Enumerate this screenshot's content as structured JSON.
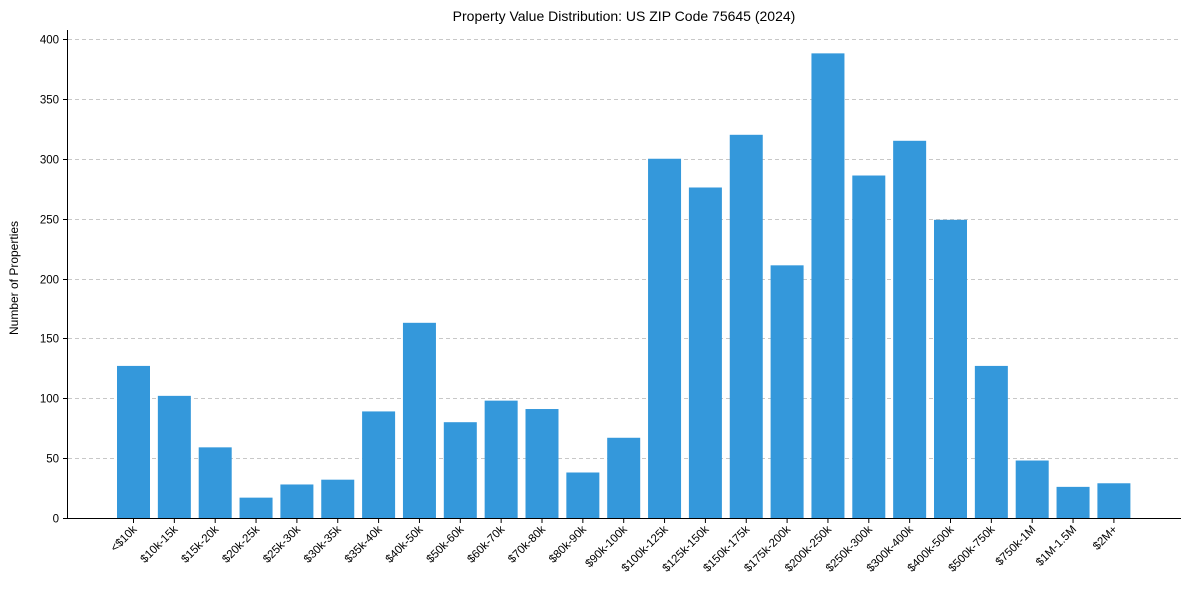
{
  "chart_data": {
    "type": "bar",
    "title": "Property Value Distribution: US ZIP Code 75645 (2024)",
    "xlabel": "",
    "ylabel": "Number of Properties",
    "ylim": [
      0,
      408
    ],
    "yticks": [
      0,
      50,
      100,
      150,
      200,
      250,
      300,
      350,
      400
    ],
    "grid": {
      "axis": "y",
      "style": "dashed",
      "color": "#c8c8c8"
    },
    "bar_color": "#3498db",
    "legend": null,
    "categories": [
      "<$10k",
      "$10k-15k",
      "$15k-20k",
      "$20k-25k",
      "$25k-30k",
      "$30k-35k",
      "$35k-40k",
      "$40k-50k",
      "$50k-60k",
      "$60k-70k",
      "$70k-80k",
      "$80k-90k",
      "$90k-100k",
      "$100k-125k",
      "$125k-150k",
      "$150k-175k",
      "$175k-200k",
      "$200k-250k",
      "$250k-300k",
      "$300k-400k",
      "$400k-500k",
      "$500k-750k",
      "$750k-1M",
      "$1M-1.5M",
      "$2M+"
    ],
    "values": [
      127,
      102,
      59,
      17,
      28,
      32,
      89,
      163,
      80,
      98,
      91,
      38,
      67,
      300,
      276,
      320,
      211,
      388,
      286,
      315,
      249,
      127,
      48,
      26,
      29
    ]
  }
}
